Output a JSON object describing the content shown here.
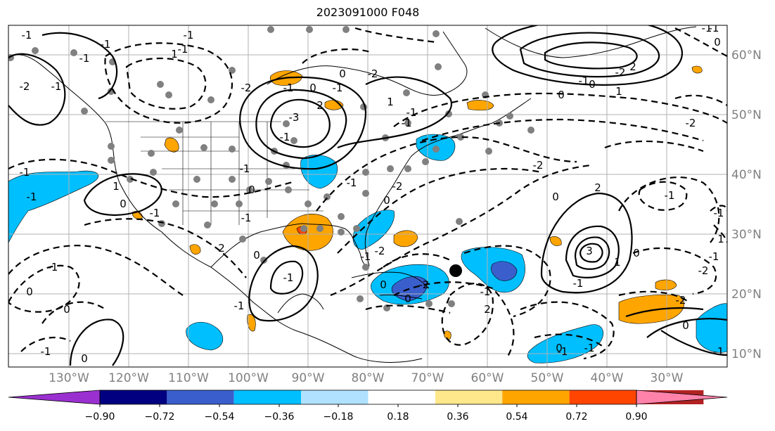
{
  "title": "2023091000 F048",
  "map": {
    "lon_labels": [
      "130°W",
      "120°W",
      "110°W",
      "100°W",
      "90°W",
      "80°W",
      "70°W",
      "60°W",
      "50°W",
      "40°W",
      "30°W"
    ],
    "lat_labels": [
      "60°N",
      "50°N",
      "40°N",
      "30°N",
      "20°N",
      "10°N"
    ],
    "contour_labels": [
      "-1",
      "-2",
      "-1",
      "-1",
      "1",
      "0",
      "-1",
      "-2",
      "2",
      "-3",
      "0",
      "-2",
      "0",
      "-1",
      "-1",
      "1",
      "-1",
      "2",
      "0",
      "-2",
      "-2",
      "-2",
      "0",
      "-1",
      "1",
      "0",
      "-1",
      "2",
      "-2",
      "-1",
      "1",
      "3",
      "1",
      "-1",
      "-1",
      "0",
      "-2",
      "0",
      "-1",
      "-1",
      "-1",
      "0",
      "-1",
      "2",
      "-2",
      "0",
      "0",
      "-2",
      "-1",
      "0",
      "-1",
      "-2",
      "0",
      "-1",
      "-1",
      "-1",
      "1",
      "0",
      "-1",
      "-1",
      "-1",
      "2",
      "-1",
      "0",
      "0",
      "-1",
      "0",
      "-1",
      "-1",
      "0",
      "-1",
      "-1",
      "-1",
      "-1",
      "-1"
    ],
    "colors": {
      "grid": "#b0b0b0",
      "positive_strong": "#ff4500",
      "positive": "#ffa500",
      "negative": "#00bfff",
      "negative_strong": "#3a5fcd",
      "station": "#808080"
    }
  },
  "colorbar": {
    "tick_labels": [
      "−0.90",
      "−0.72",
      "−0.54",
      "−0.36",
      "−0.18",
      "0.18",
      "0.36",
      "0.54",
      "0.72",
      "0.90"
    ],
    "colors": [
      "#9b30d0",
      "#000080",
      "#3a5fcd",
      "#00bfff",
      "#b0e2ff",
      "#ffffff",
      "#ffe88c",
      "#ffa500",
      "#ff4500",
      "#b22222",
      "#ff82ab"
    ]
  }
}
